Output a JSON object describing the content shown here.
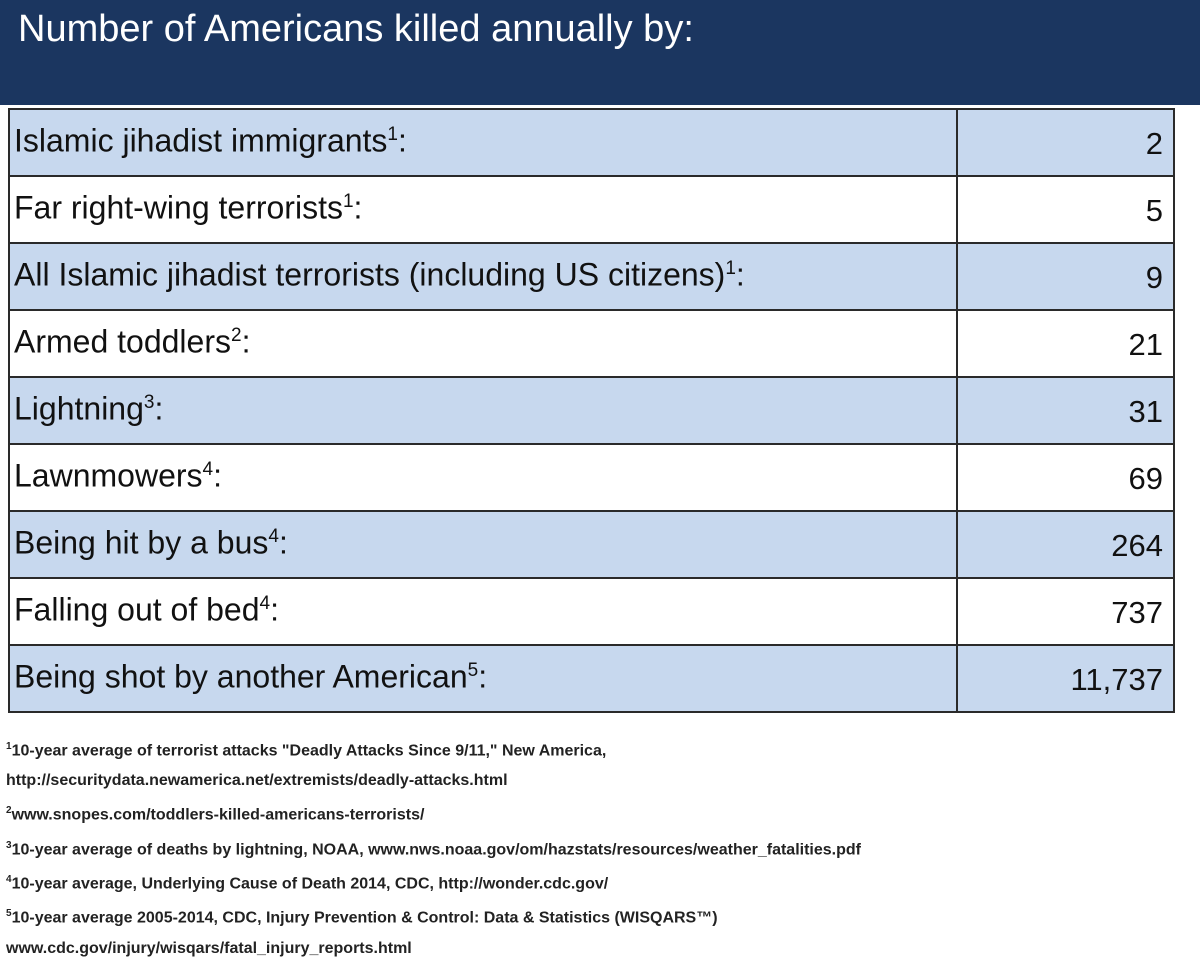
{
  "header": {
    "title": "Number of Americans killed annually by:"
  },
  "table": {
    "rows": [
      {
        "label": "Islamic jihadist immigrants",
        "note": "1",
        "end": ":",
        "value": "2"
      },
      {
        "label": "Far right-wing terrorists",
        "note": "1",
        "end": ":",
        "value": "5"
      },
      {
        "label": "All Islamic jihadist terrorists (including US citizens)",
        "note": "1",
        "end": ":",
        "value": "9"
      },
      {
        "label": "Armed toddlers",
        "note": "2",
        "end": ":",
        "value": "21"
      },
      {
        "label": "Lightning",
        "note": "3",
        "end": ":",
        "value": "31"
      },
      {
        "label": "Lawnmowers",
        "note": "4",
        "end": ":",
        "value": "69"
      },
      {
        "label": "Being hit by a bus",
        "note": "4",
        "end": ":",
        "value": "264"
      },
      {
        "label": "Falling out of bed",
        "note": "4",
        "end": ":",
        "value": "737"
      },
      {
        "label": "Being shot by another American",
        "note": "5",
        "end": ":",
        "value": "11,737"
      }
    ]
  },
  "footnotes": [
    {
      "mark": "1",
      "lines": [
        "10-year average of terrorist attacks \"Deadly Attacks Since 9/11,\" New America,",
        "http://securitydata.newamerica.net/extremists/deadly-attacks.html"
      ]
    },
    {
      "mark": "2",
      "lines": [
        "www.snopes.com/toddlers-killed-americans-terrorists/"
      ]
    },
    {
      "mark": "3",
      "lines": [
        "10-year average of deaths by lightning, NOAA, www.nws.noaa.gov/om/hazstats/resources/weather_fatalities.pdf"
      ]
    },
    {
      "mark": "4",
      "lines": [
        "10-year average, Underlying Cause of Death 2014, CDC, http://wonder.cdc.gov/"
      ]
    },
    {
      "mark": "5",
      "lines": [
        "10-year average 2005-2014, CDC, Injury Prevention & Control: Data & Statistics (WISQARS™)",
        "www.cdc.gov/injury/wisqars/fatal_injury_reports.html"
      ]
    }
  ]
}
